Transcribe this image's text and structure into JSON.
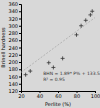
{
  "chart_data": {
    "type": "scatter",
    "title": "",
    "xlabel": "Perlite (%)",
    "ylabel": "Brinell hardness",
    "xlim": [
      20,
      100
    ],
    "ylim": [
      120,
      360
    ],
    "xticks": [
      20,
      40,
      60,
      80,
      100
    ],
    "yticks": [
      120,
      140,
      160,
      180,
      200,
      220,
      240,
      260,
      280,
      300,
      320,
      340,
      360
    ],
    "series": [
      {
        "type": "line",
        "x": [
          20,
          100
        ],
        "values": [
          171.32,
          322.52
        ],
        "color": "#aaaaaa",
        "line_style": "dashed"
      },
      {
        "type": "scatter",
        "x": [
          25,
          30,
          50,
          55,
          65,
          80,
          85,
          90,
          95,
          97
        ],
        "values": [
          165,
          175,
          198,
          185,
          210,
          275,
          300,
          315,
          330,
          340
        ],
        "color": "#333333",
        "marker": "plus"
      }
    ],
    "annotations": [
      "BHN = 1.89* P% + 133.52",
      "R² = 0.95"
    ]
  }
}
